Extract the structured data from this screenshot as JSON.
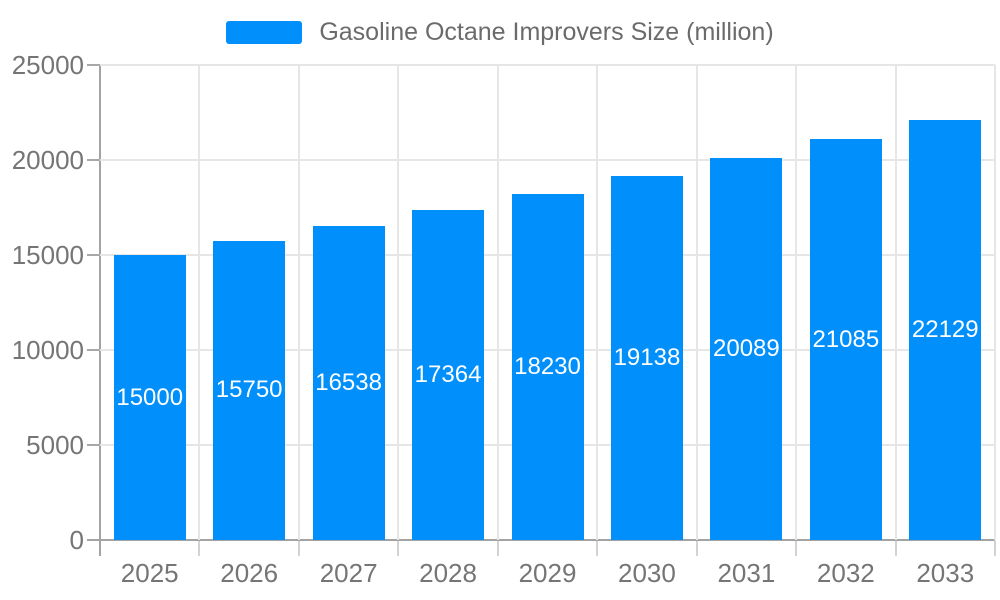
{
  "legend": {
    "label": "Gasoline Octane Improvers Size (million)"
  },
  "chart_data": {
    "type": "bar",
    "title": "Gasoline Octane Improvers Size (million)",
    "series_name": "Gasoline Octane Improvers Size (million)",
    "categories": [
      "2025",
      "2026",
      "2027",
      "2028",
      "2029",
      "2030",
      "2031",
      "2032",
      "2033"
    ],
    "values": [
      15000,
      15750,
      16538,
      17364,
      18230,
      19138,
      20089,
      21085,
      22129
    ],
    "xlabel": "",
    "ylabel": "",
    "ylim": [
      0,
      25000
    ],
    "yticks": [
      0,
      5000,
      10000,
      15000,
      20000,
      25000
    ],
    "grid": true,
    "legend_position": "top",
    "bar_color": "#008FFB",
    "value_label_color": "#ffffff",
    "axis_label_color": "#757575",
    "gridline_color": "#e6e6e6",
    "axis_line_color": "#a3a3a3"
  }
}
